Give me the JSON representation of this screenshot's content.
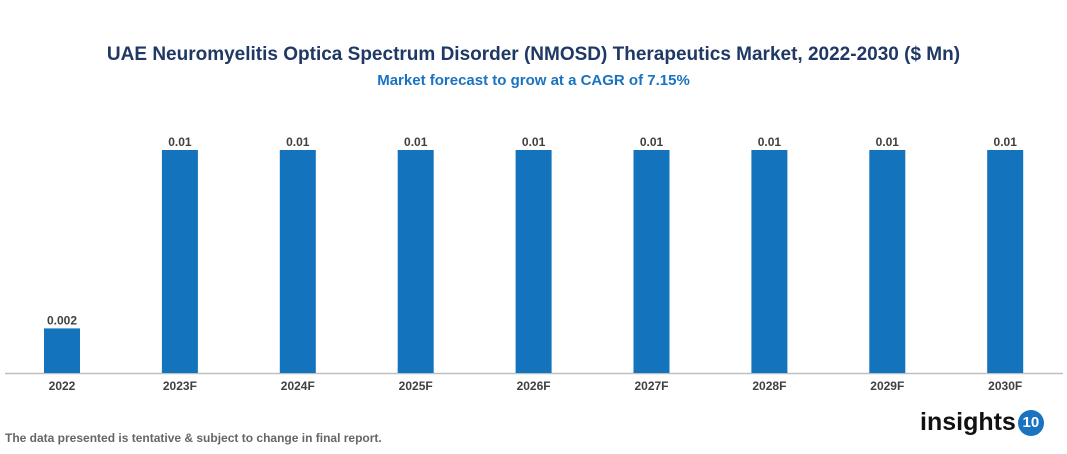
{
  "chart_data": {
    "type": "bar",
    "title": "UAE Neuromyelitis Optica Spectrum Disorder (NMOSD) Therapeutics Market, 2022-2030 ($ Mn)",
    "subtitle": "Market forecast to grow at a CAGR of 7.15%",
    "categories": [
      "2022",
      "2023F",
      "2024F",
      "2025F",
      "2026F",
      "2027F",
      "2028F",
      "2029F",
      "2030F"
    ],
    "values": [
      0.002,
      0.01,
      0.01,
      0.01,
      0.01,
      0.01,
      0.01,
      0.01,
      0.01
    ],
    "labels": [
      "0.002",
      "0.01",
      "0.01",
      "0.01",
      "0.01",
      "0.01",
      "0.01",
      "0.01",
      "0.01"
    ],
    "ylim": [
      0,
      0.01
    ],
    "grid": false,
    "bar_color": "#1473bd",
    "xlabel": "",
    "ylabel": ""
  },
  "footnote": "The data presented is tentative & subject to change in final report.",
  "logo": {
    "text": "insights",
    "badge": "10"
  }
}
